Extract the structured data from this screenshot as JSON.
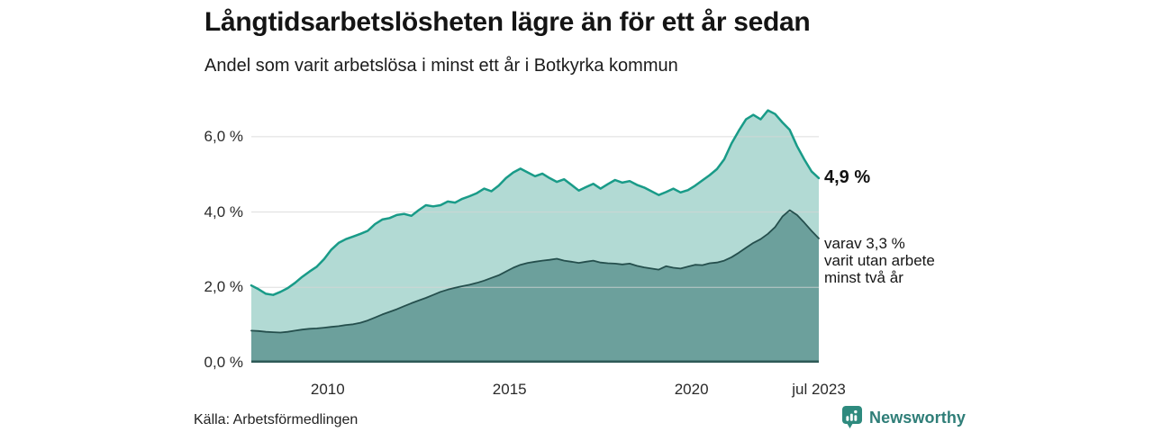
{
  "brand": {
    "name": "Newsworthy",
    "color": "#2f7e78",
    "icon_color": "#2e8a7e",
    "icon": "newsworthy-pin-barchart-icon"
  },
  "chart_data": {
    "type": "area",
    "title": "Långtidsarbetslösheten lägre än för ett år sedan",
    "subtitle": "Andel som varit arbetslösa i minst ett år i Botkyrka kommun",
    "source": "Källa: Arbetsförmedlingen",
    "xlabel": "",
    "ylabel": "",
    "xlim": [
      2007.9,
      2023.5
    ],
    "ylim": [
      0,
      7
    ],
    "x_start": 2007.9,
    "x_step": 0.2,
    "grid": true,
    "grid_color": "#d4d4d4",
    "baseline_color": "#2e5a57",
    "legend_position": "none",
    "yticks": [
      {
        "value": 0,
        "label": "0,0 %"
      },
      {
        "value": 2,
        "label": "2,0 %"
      },
      {
        "value": 4,
        "label": "4,0 %"
      },
      {
        "value": 6,
        "label": "6,0 %"
      }
    ],
    "xticks": [
      {
        "value": 2010,
        "label": "2010"
      },
      {
        "value": 2015,
        "label": "2015"
      },
      {
        "value": 2020,
        "label": "2020"
      },
      {
        "value": 2023.5,
        "label": "jul 2023"
      }
    ],
    "series": [
      {
        "name": "Andel arbetslösa minst ett år",
        "line_color": "#199b88",
        "fill_color": "#b2dad4",
        "line_width": 2.5,
        "values": [
          2.05,
          1.95,
          1.83,
          1.8,
          1.88,
          1.98,
          2.12,
          2.28,
          2.42,
          2.55,
          2.75,
          3.0,
          3.18,
          3.28,
          3.35,
          3.42,
          3.5,
          3.68,
          3.8,
          3.84,
          3.92,
          3.95,
          3.9,
          4.05,
          4.18,
          4.15,
          4.18,
          4.28,
          4.25,
          4.35,
          4.42,
          4.5,
          4.62,
          4.55,
          4.7,
          4.9,
          5.05,
          5.15,
          5.05,
          4.95,
          5.02,
          4.9,
          4.8,
          4.87,
          4.72,
          4.57,
          4.66,
          4.75,
          4.62,
          4.74,
          4.85,
          4.78,
          4.82,
          4.72,
          4.65,
          4.55,
          4.45,
          4.53,
          4.62,
          4.52,
          4.58,
          4.7,
          4.84,
          4.98,
          5.14,
          5.4,
          5.82,
          6.16,
          6.46,
          6.58,
          6.46,
          6.7,
          6.6,
          6.38,
          6.18,
          5.75,
          5.4,
          5.08,
          4.9
        ]
      },
      {
        "name": "Andel arbetslösa minst två år",
        "line_color": "#254f4d",
        "fill_color": "#6ca09c",
        "line_width": 1.8,
        "values": [
          0.85,
          0.84,
          0.82,
          0.81,
          0.8,
          0.82,
          0.85,
          0.88,
          0.9,
          0.91,
          0.93,
          0.95,
          0.97,
          1.0,
          1.02,
          1.06,
          1.12,
          1.2,
          1.28,
          1.35,
          1.42,
          1.5,
          1.58,
          1.65,
          1.72,
          1.8,
          1.88,
          1.94,
          1.99,
          2.03,
          2.07,
          2.12,
          2.18,
          2.25,
          2.32,
          2.42,
          2.52,
          2.6,
          2.65,
          2.68,
          2.71,
          2.73,
          2.76,
          2.71,
          2.68,
          2.65,
          2.68,
          2.71,
          2.66,
          2.64,
          2.63,
          2.61,
          2.63,
          2.57,
          2.53,
          2.5,
          2.47,
          2.56,
          2.52,
          2.5,
          2.55,
          2.6,
          2.59,
          2.64,
          2.66,
          2.71,
          2.8,
          2.92,
          3.05,
          3.18,
          3.28,
          3.42,
          3.6,
          3.88,
          4.05,
          3.92,
          3.72,
          3.5,
          3.3
        ]
      }
    ],
    "annotations": {
      "latest": "4,9 %",
      "sub": [
        "varav 3,3 %",
        "varit utan arbete",
        "minst två år"
      ]
    }
  }
}
